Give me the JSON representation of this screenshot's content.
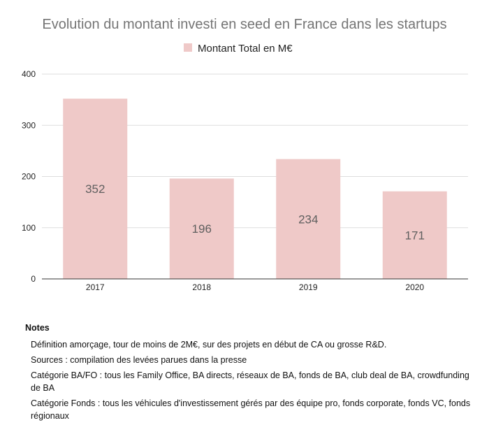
{
  "chart_data": {
    "type": "bar",
    "title": "Evolution du montant investi en seed en France dans les startups",
    "legend": "Montant Total en M€",
    "categories": [
      "2017",
      "2018",
      "2019",
      "2020"
    ],
    "values": [
      352,
      196,
      234,
      171
    ],
    "yticks": [
      "0",
      "100",
      "200",
      "300",
      "400"
    ],
    "ylim": [
      0,
      400
    ],
    "xlabel": "",
    "ylabel": "",
    "grid": true,
    "bar_color": "#efc9c8",
    "gridline_color": "#dddddd",
    "axis_color": "#333333"
  },
  "notes": {
    "title": "Notes",
    "lines": [
      "Définition amorçage, tour de moins de 2M€, sur des projets en début de CA ou grosse R&D.",
      "Sources : compilation des levées parues dans la presse",
      "Catégorie BA/FO : tous les Family Office, BA directs, réseaux de BA, fonds de BA, club deal de BA, crowdfunding de BA",
      "Catégorie Fonds : tous les véhicules d'investissement gérés par des équipe pro, fonds corporate, fonds VC, fonds régionaux"
    ]
  }
}
